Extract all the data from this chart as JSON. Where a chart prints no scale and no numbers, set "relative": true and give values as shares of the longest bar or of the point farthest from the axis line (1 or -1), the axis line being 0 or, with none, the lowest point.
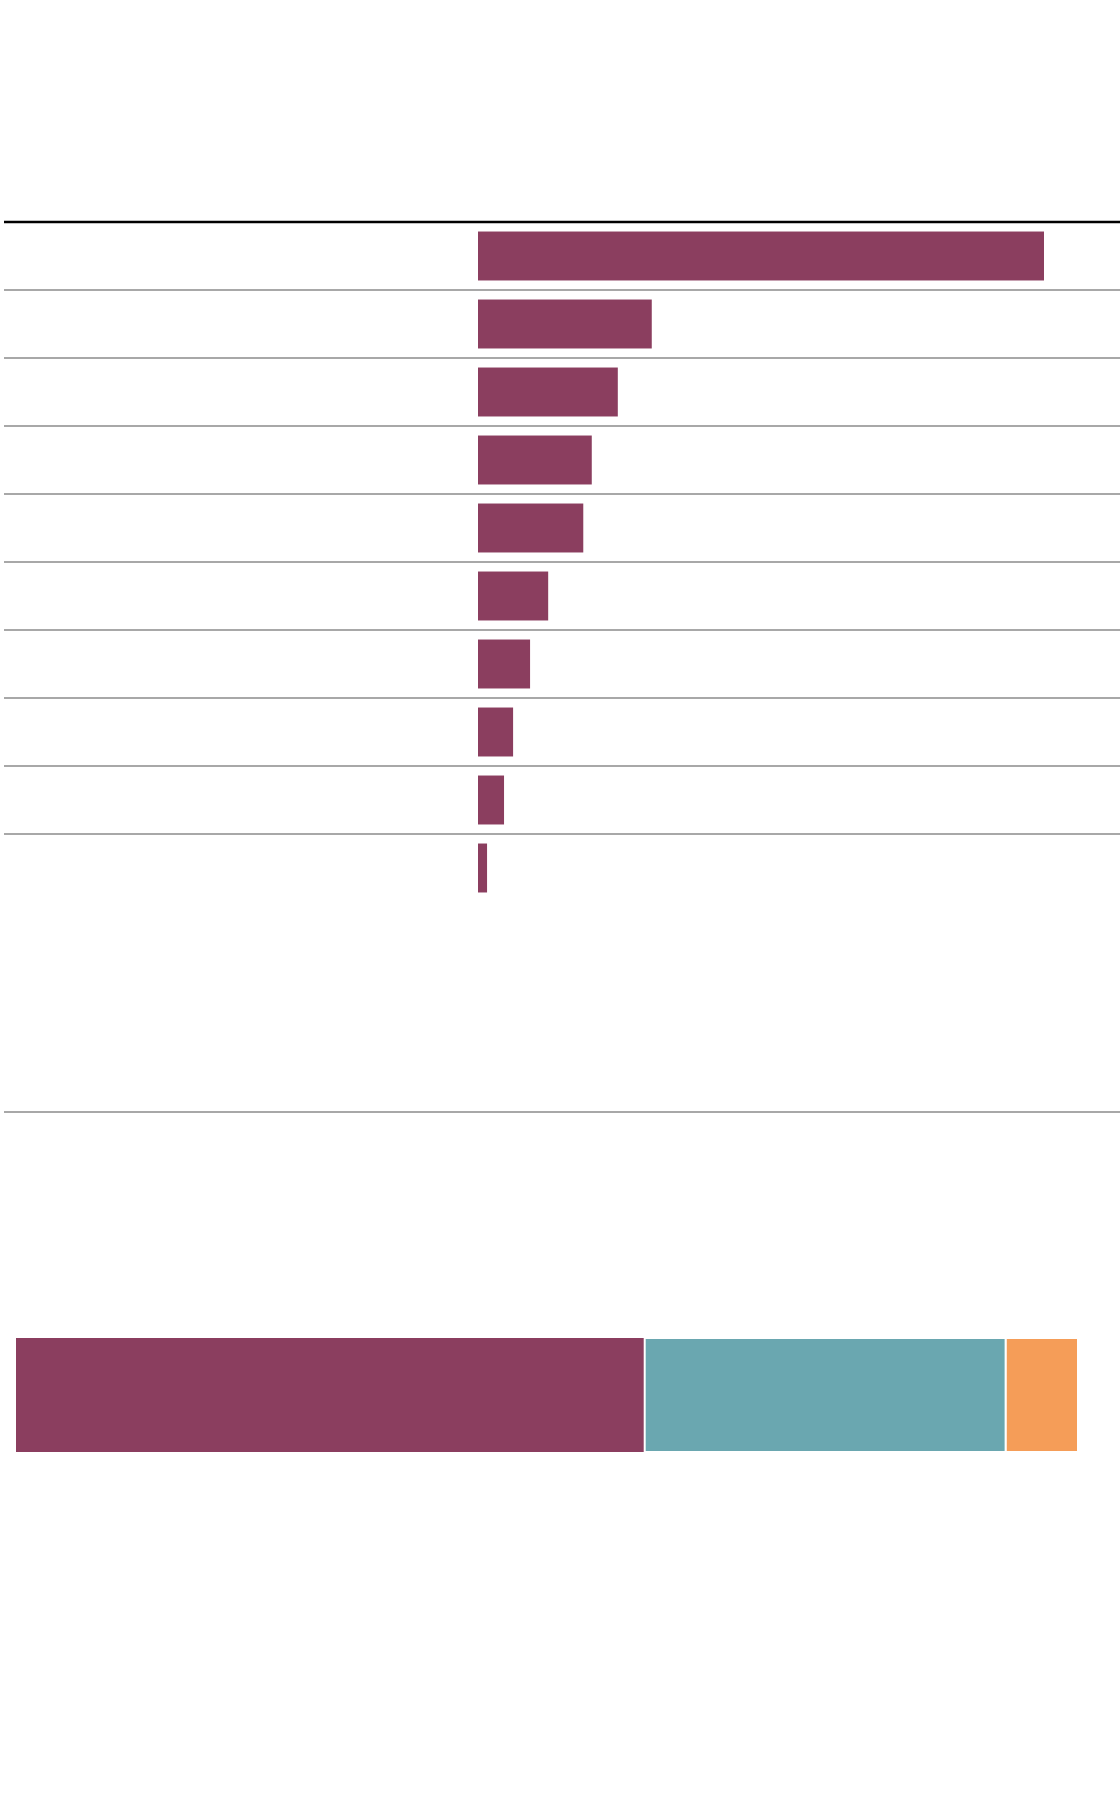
{
  "chart_data": [
    {
      "type": "bar",
      "orientation": "horizontal",
      "relative": true,
      "categories": [
        null,
        null,
        null,
        null,
        null,
        null,
        null,
        null,
        null,
        null
      ],
      "color": "#8b3e5f",
      "values": [
        1,
        0.307,
        0.247,
        0.201,
        0.186,
        0.124,
        0.092,
        0.062,
        0.046,
        0.016
      ]
    },
    {
      "type": "bar",
      "orientation": "horizontal",
      "relative": true,
      "stacked": true,
      "categories": [
        null
      ],
      "series": [
        {
          "color": "#8b3e5f",
          "values": [
            0.592
          ]
        },
        {
          "color": "#6aa7b0",
          "values": [
            0.34
          ]
        },
        {
          "color": "#f59d58",
          "values": [
            0.068
          ]
        }
      ]
    }
  ]
}
